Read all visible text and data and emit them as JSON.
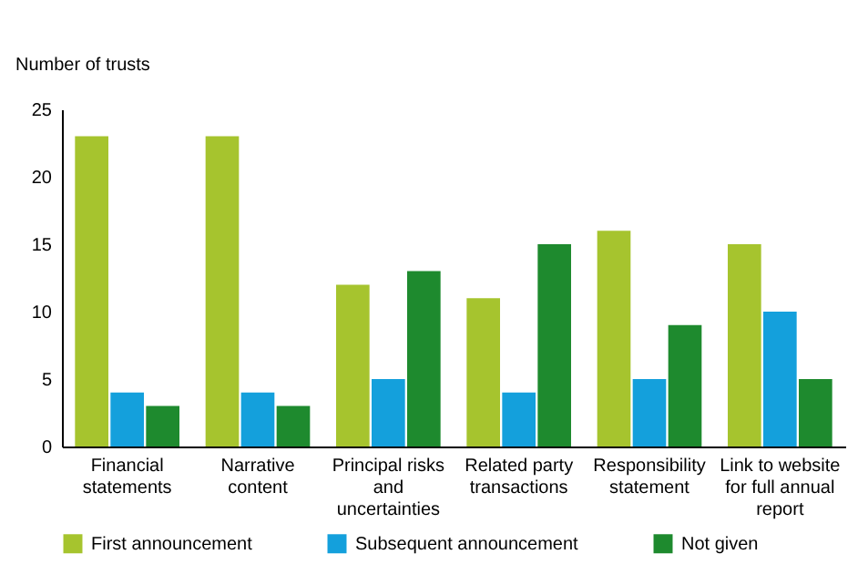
{
  "chart_data": {
    "type": "bar",
    "ylabel": "Number of trusts",
    "categories": [
      "Financial statements",
      "Narrative content",
      "Principal risks and uncertainties",
      "Related party transactions",
      "Responsibility statement",
      "Link to website for full annual report"
    ],
    "series": [
      {
        "name": "First announcement",
        "color": "#a6c42e",
        "values": [
          23,
          23,
          12,
          11,
          16,
          15
        ]
      },
      {
        "name": "Subsequent announcement",
        "color": "#14a0dc",
        "values": [
          4,
          4,
          5,
          4,
          5,
          10
        ]
      },
      {
        "name": "Not given",
        "color": "#1e8a2e",
        "values": [
          3,
          3,
          13,
          15,
          9,
          5
        ]
      }
    ],
    "ylim": [
      0,
      25
    ],
    "yticks": [
      0,
      5,
      10,
      15,
      20,
      25
    ],
    "grid": false,
    "legend": "bottom"
  }
}
